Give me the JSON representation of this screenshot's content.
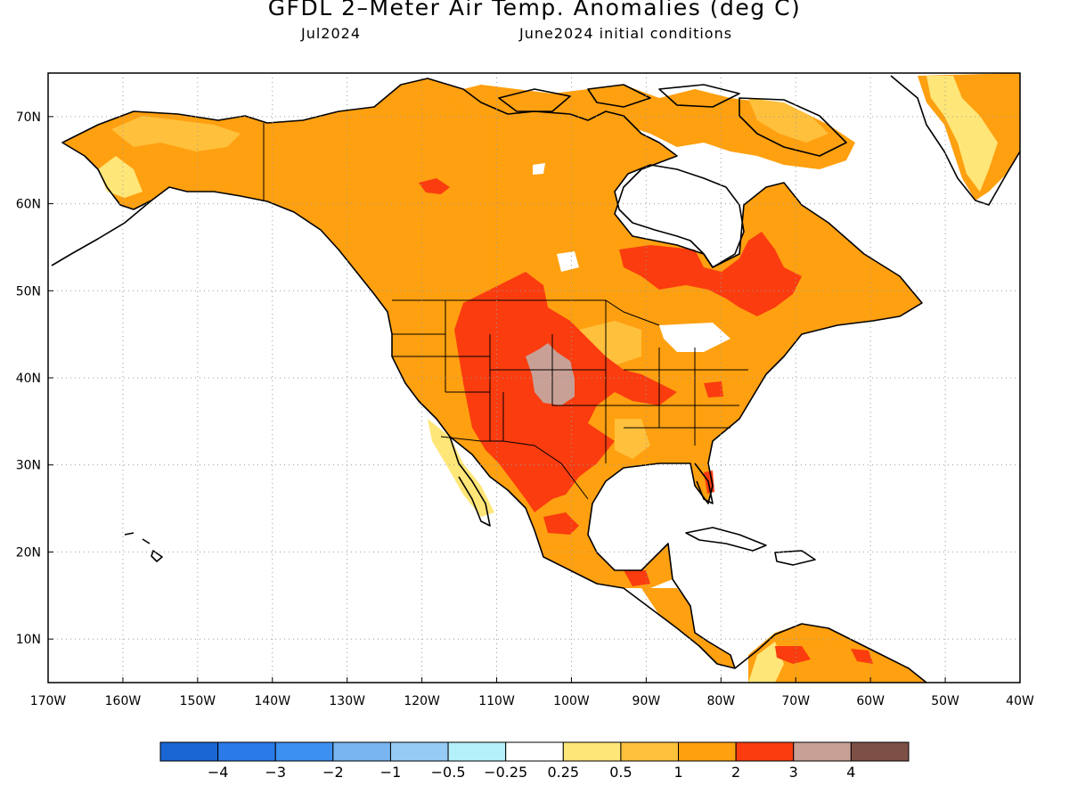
{
  "header": {
    "title": "GFDL 2–Meter Air Temp. Anomalies (deg C)",
    "left_subtitle": "Jul2024",
    "right_subtitle": "June2024 initial conditions"
  },
  "map": {
    "lon_labels": [
      "170W",
      "160W",
      "150W",
      "140W",
      "130W",
      "120W",
      "110W",
      "100W",
      "90W",
      "80W",
      "70W",
      "60W",
      "50W",
      "40W"
    ],
    "lat_labels": [
      "70N",
      "60N",
      "50N",
      "40N",
      "30N",
      "20N",
      "10N"
    ],
    "lon_range": [
      -170,
      -40
    ],
    "lat_range": [
      5,
      75
    ]
  },
  "colorbar": {
    "colors": [
      "#1a66d2",
      "#2a7ae8",
      "#3c90f0",
      "#78b4f0",
      "#96cbf5",
      "#b4f0fa",
      "#ffffff",
      "#ffe678",
      "#ffc03c",
      "#ffa010",
      "#fa3c0f",
      "#c8a096",
      "#7d5046"
    ],
    "labels": [
      "−4",
      "−3",
      "−2",
      "−1",
      "−0.5",
      "−0.25",
      "0.25",
      "0.5",
      "1",
      "2",
      "3",
      "4"
    ]
  },
  "legend_categories": {
    "gt_0_5": "#ffc03c",
    "gt_1": "#ffa010",
    "gt_2": "#fa3c0f",
    "gt_3": "#c8a096",
    "near_zero": "#ffe678"
  }
}
